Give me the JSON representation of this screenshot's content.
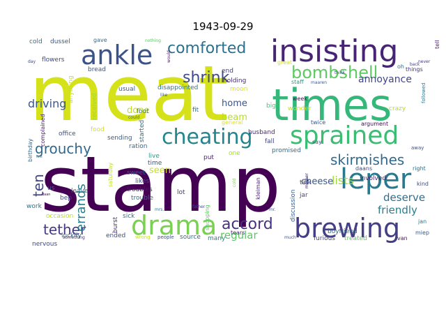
{
  "title": "1943-09-29",
  "words": [
    {
      "text": "meat",
      "color": "#d5e21a"
    },
    {
      "text": "stamp",
      "color": "#440154"
    },
    {
      "text": "times",
      "color": "#35b779"
    },
    {
      "text": "insisting",
      "color": "#482475"
    },
    {
      "text": "ankle",
      "color": "#3b528b"
    },
    {
      "text": "sprained",
      "color": "#3dbc74"
    },
    {
      "text": "leper",
      "color": "#2a788e"
    },
    {
      "text": "brewing",
      "color": "#433e85"
    },
    {
      "text": "drama",
      "color": "#7ad151"
    },
    {
      "text": "cheating",
      "color": "#25858e"
    },
    {
      "text": "bombshell",
      "color": "#5ec962"
    },
    {
      "text": "comforted",
      "color": "#2d708e"
    },
    {
      "text": "shrink",
      "color": "#3e4a89"
    },
    {
      "text": "grouchy",
      "color": "#31688e"
    },
    {
      "text": "skirmishes",
      "color": "#306a8e"
    },
    {
      "text": "tether",
      "color": "#443983"
    },
    {
      "text": "accord",
      "color": "#46327e"
    },
    {
      "text": "errands",
      "color": "#287d8e"
    },
    {
      "text": "ten",
      "color": "#3f4889"
    },
    {
      "text": "driving",
      "color": "#38588c"
    },
    {
      "text": "lists",
      "color": "#9fda3a"
    },
    {
      "text": "annoyance",
      "color": "#404688"
    },
    {
      "text": "regular",
      "color": "#5cc863"
    },
    {
      "text": "deserve",
      "color": "#2e6e8e"
    },
    {
      "text": "friendly",
      "color": "#277f8e"
    },
    {
      "text": "cheese",
      "color": "#39568c"
    },
    {
      "text": "home",
      "color": "#3a548c"
    },
    {
      "text": "beam",
      "color": "#b5de2b"
    },
    {
      "text": "done",
      "color": "#bddf26"
    },
    {
      "text": "seen",
      "color": "#c8e020"
    },
    {
      "text": "disappointed",
      "color": "#2a788e"
    },
    {
      "text": "holding",
      "color": "#472c7a"
    },
    {
      "text": "usual",
      "color": "#355f8d"
    },
    {
      "text": "fit",
      "color": "#2c728e"
    },
    {
      "text": "put",
      "color": "#481f70"
    },
    {
      "text": "one",
      "color": "#a8db34"
    },
    {
      "text": "fall",
      "color": "#404688"
    },
    {
      "text": "promised",
      "color": "#2f6c8e"
    },
    {
      "text": "husband",
      "color": "#472a7a"
    },
    {
      "text": "general",
      "color": "#dde318"
    },
    {
      "text": "argument",
      "color": "#450559"
    },
    {
      "text": "crazy",
      "color": "#b0dd2f"
    },
    {
      "text": "twice",
      "color": "#3a548c"
    },
    {
      "text": "wonder",
      "color": "#c2df23"
    },
    {
      "text": "week",
      "color": "#460b5e"
    },
    {
      "text": "staff",
      "color": "#1e9b8a"
    },
    {
      "text": "great",
      "color": "#d0e11c"
    },
    {
      "text": "away",
      "color": "#3c4f8a"
    },
    {
      "text": "right",
      "color": "#2e6e8e"
    },
    {
      "text": "kind",
      "color": "#3f4788"
    },
    {
      "text": "followed",
      "color": "#2a768e"
    },
    {
      "text": "tell",
      "color": "#481b6d"
    },
    {
      "text": "things",
      "color": "#453781"
    },
    {
      "text": "oh",
      "color": "#2e6f8e"
    },
    {
      "text": "miep",
      "color": "#375a8c"
    },
    {
      "text": "jan",
      "color": "#2b748e"
    },
    {
      "text": "van",
      "color": "#471063"
    },
    {
      "text": "treated",
      "color": "#5ec962"
    },
    {
      "text": "furious",
      "color": "#3f4788"
    },
    {
      "text": "boyfriend",
      "color": "#31678e"
    },
    {
      "text": "talk",
      "color": "#3e4989"
    },
    {
      "text": "jar",
      "color": "#414487"
    },
    {
      "text": "involved",
      "color": "#481c6e"
    },
    {
      "text": "daans",
      "color": "#3f4889"
    },
    {
      "text": "discussion",
      "color": "#355e8d"
    },
    {
      "text": "kleiman",
      "color": "#482475"
    },
    {
      "text": "tears",
      "color": "#482173"
    },
    {
      "text": "shopping",
      "color": "#5ec962"
    },
    {
      "text": "source",
      "color": "#2f6c8e"
    },
    {
      "text": "many",
      "color": "#26828e"
    },
    {
      "text": "lot",
      "color": "#46337f"
    },
    {
      "text": "live",
      "color": "#1fa188"
    },
    {
      "text": "time",
      "color": "#3b528b"
    },
    {
      "text": "trouble",
      "color": "#2e6e8e"
    },
    {
      "text": "troubles",
      "color": "#48186a"
    },
    {
      "text": "likes",
      "color": "#3c4f8a"
    },
    {
      "text": "sweet",
      "color": "#34618d"
    },
    {
      "text": "ration",
      "color": "#31688e"
    },
    {
      "text": "started",
      "color": "#2c728e"
    },
    {
      "text": "sending",
      "color": "#365c8d"
    },
    {
      "text": "food",
      "color": "#d8e219"
    },
    {
      "text": "received",
      "color": "#9bd93c"
    },
    {
      "text": "foot",
      "color": "#25848e"
    },
    {
      "text": "office",
      "color": "#3b528b"
    },
    {
      "text": "anything",
      "color": "#c5e021"
    },
    {
      "text": "saturday",
      "color": "#c0df25"
    },
    {
      "text": "burst",
      "color": "#482878"
    },
    {
      "text": "sick",
      "color": "#2c738e"
    },
    {
      "text": "ended",
      "color": "#3d4e8a"
    },
    {
      "text": "wrong",
      "color": "#cae11f"
    },
    {
      "text": "people",
      "color": "#3b528b"
    },
    {
      "text": "luckily",
      "color": "#2d708e"
    },
    {
      "text": "bep",
      "color": "#3e4989"
    },
    {
      "text": "us",
      "color": "#32658e"
    },
    {
      "text": "leave",
      "color": "#2c728e"
    },
    {
      "text": "work",
      "color": "#2d708e"
    },
    {
      "text": "occasion",
      "color": "#b5de2b"
    },
    {
      "text": "nervous",
      "color": "#3f4889"
    },
    {
      "text": "something",
      "color": "#482979"
    },
    {
      "text": "daan",
      "color": "#440154"
    },
    {
      "text": "birthday",
      "color": "#31688e"
    },
    {
      "text": "complained",
      "color": "#48186a"
    },
    {
      "text": "cold",
      "color": "#2c738e"
    },
    {
      "text": "dussel",
      "color": "#38588c"
    },
    {
      "text": "flowers",
      "color": "#3f4889"
    },
    {
      "text": "gave",
      "color": "#2f6c8e"
    },
    {
      "text": "bread",
      "color": "#3a548c"
    },
    {
      "text": "day",
      "color": "#404688"
    },
    {
      "text": "nothing",
      "color": "#5ac864"
    },
    {
      "text": "could",
      "color": "#2f6b8e"
    },
    {
      "text": "would",
      "color": "#471365"
    },
    {
      "text": "end",
      "color": "#453882"
    },
    {
      "text": "moon",
      "color": "#dae319"
    },
    {
      "text": "like",
      "color": "#3b528b"
    },
    {
      "text": "big",
      "color": "#4ac16d"
    },
    {
      "text": "back",
      "color": "#424186"
    },
    {
      "text": "never",
      "color": "#46337f"
    },
    {
      "text": "think",
      "color": "#3e4989"
    },
    {
      "text": "maaren",
      "color": "#38598c"
    },
    {
      "text": "say",
      "color": "#3b528b"
    },
    {
      "text": "mother",
      "color": "#481467"
    },
    {
      "text": "cold",
      "color": "#7ad151"
    },
    {
      "text": "father",
      "color": "#404688"
    },
    {
      "text": "mrs.",
      "color": "#2c738e"
    },
    {
      "text": "mr.",
      "color": "#3b528b"
    },
    {
      "text": "lost",
      "color": "#25848e"
    },
    {
      "text": "much",
      "color": "#3b528b"
    }
  ]
}
